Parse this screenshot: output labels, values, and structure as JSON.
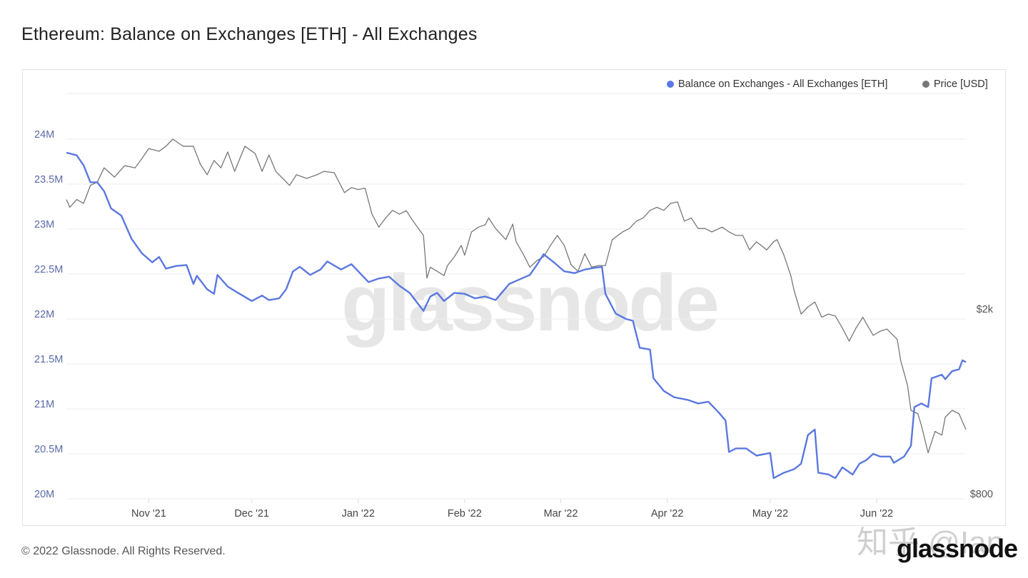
{
  "title": "Ethereum: Balance on Exchanges [ETH] - All Exchanges",
  "footer": "© 2022 Glassnode. All Rights Reserved.",
  "logo": "glassnode",
  "watermark": "glassnode",
  "overlay_watermark": "知乎 @Ian",
  "colors": {
    "balance": "#5b78e0",
    "price": "#777777",
    "grid": "#eeeeee",
    "left_axis": "#5a6aa8",
    "right_axis": "#555555"
  },
  "chart_data": {
    "type": "line",
    "title": "Ethereum: Balance on Exchanges [ETH] - All Exchanges",
    "x_unit": "days since 2021-10-08",
    "x_range": [
      0,
      262
    ],
    "x_ticks": [
      {
        "day": 24,
        "label": "Nov '21"
      },
      {
        "day": 54,
        "label": "Dec '21"
      },
      {
        "day": 85,
        "label": "Jan '22"
      },
      {
        "day": 116,
        "label": "Feb '22"
      },
      {
        "day": 144,
        "label": "Mar '22"
      },
      {
        "day": 175,
        "label": "Apr '22"
      },
      {
        "day": 205,
        "label": "May '22"
      },
      {
        "day": 236,
        "label": "Jun '22"
      }
    ],
    "y_left": {
      "label": "",
      "range_millions": [
        20,
        24.5
      ],
      "ticks": [
        {
          "value": 20,
          "label": "20M"
        },
        {
          "value": 20.5,
          "label": "20.5M"
        },
        {
          "value": 21,
          "label": "21M"
        },
        {
          "value": 21.5,
          "label": "21.5M"
        },
        {
          "value": 22,
          "label": "22M"
        },
        {
          "value": 22.5,
          "label": "22.5M"
        },
        {
          "value": 23,
          "label": "23M"
        },
        {
          "value": 23.5,
          "label": "23.5M"
        },
        {
          "value": 24,
          "label": "24M"
        }
      ]
    },
    "y_right": {
      "scale": "log",
      "range_usd": [
        800,
        5000
      ],
      "ticks": [
        {
          "value": 800,
          "label": "$800"
        },
        {
          "value": 2000,
          "label": "$2k"
        }
      ]
    },
    "grid": true,
    "legend_position": "top-right",
    "series": [
      {
        "name": "Balance on Exchanges - All Exchanges [ETH]",
        "axis": "left",
        "unit": "million ETH",
        "x": [
          0,
          3,
          5,
          7,
          9,
          11,
          13,
          16,
          19,
          22,
          25,
          27,
          29,
          32,
          35,
          37,
          38,
          41,
          43,
          44,
          47,
          50,
          54,
          57,
          59,
          62,
          64,
          66,
          68,
          71,
          74,
          76,
          80,
          83,
          85,
          88,
          91,
          94,
          97,
          100,
          104,
          106,
          108,
          110,
          113,
          116,
          119,
          122,
          125,
          129,
          132,
          135,
          137,
          139,
          142,
          145,
          148,
          151,
          154,
          156,
          157,
          160,
          163,
          165,
          167,
          170,
          171,
          174,
          177,
          181,
          184,
          187,
          190,
          192,
          193,
          195,
          198,
          201,
          205,
          206,
          209,
          212,
          214,
          216,
          218,
          219,
          222,
          224,
          226,
          229,
          231,
          233,
          235,
          237,
          240,
          241,
          244,
          246,
          247,
          249,
          251,
          252,
          255,
          256,
          258,
          260,
          261,
          262
        ],
        "y": [
          23.85,
          23.82,
          23.71,
          23.52,
          23.52,
          23.42,
          23.23,
          23.15,
          22.89,
          22.73,
          22.63,
          22.69,
          22.56,
          22.59,
          22.6,
          22.39,
          22.48,
          22.33,
          22.28,
          22.49,
          22.36,
          22.29,
          22.2,
          22.26,
          22.21,
          22.23,
          22.33,
          22.53,
          22.58,
          22.49,
          22.55,
          22.64,
          22.55,
          22.61,
          22.53,
          22.41,
          22.45,
          22.47,
          22.37,
          22.29,
          22.09,
          22.25,
          22.29,
          22.2,
          22.29,
          22.28,
          22.23,
          22.25,
          22.21,
          22.39,
          22.44,
          22.49,
          22.6,
          22.72,
          22.63,
          22.53,
          22.51,
          22.55,
          22.57,
          22.58,
          22.28,
          22.06,
          22.0,
          21.98,
          21.68,
          21.66,
          21.34,
          21.2,
          21.13,
          21.1,
          21.06,
          21.08,
          20.96,
          20.87,
          20.52,
          20.56,
          20.56,
          20.48,
          20.51,
          20.23,
          20.29,
          20.33,
          20.39,
          20.71,
          20.77,
          20.29,
          20.27,
          20.23,
          20.35,
          20.27,
          20.39,
          20.43,
          20.5,
          20.47,
          20.47,
          20.4,
          20.47,
          20.59,
          21.02,
          21.06,
          21.02,
          21.34,
          21.38,
          21.33,
          21.42,
          21.44,
          21.54,
          21.52
        ]
      },
      {
        "name": "Price [USD]",
        "axis": "right",
        "unit": "USD",
        "x": [
          0,
          1,
          3,
          5,
          7,
          9,
          11,
          14,
          17,
          20,
          22,
          24,
          27,
          29,
          31,
          34,
          37,
          39,
          41,
          43,
          45,
          47,
          49,
          52,
          55,
          57,
          59,
          61,
          63,
          65,
          67,
          70,
          73,
          75,
          78,
          81,
          83,
          85,
          87,
          89,
          91,
          93,
          95,
          97,
          99,
          101,
          104,
          105,
          106,
          108,
          110,
          111,
          113,
          115,
          116,
          118,
          120,
          122,
          123,
          125,
          128,
          130,
          131,
          133,
          135,
          137,
          139,
          141,
          143,
          145,
          147,
          149,
          151,
          153,
          155,
          157,
          159,
          162,
          164,
          166,
          168,
          170,
          172,
          174,
          176,
          178,
          180,
          182,
          184,
          186,
          188,
          191,
          193,
          195,
          197,
          199,
          201,
          204,
          206,
          207,
          209,
          211,
          212,
          214,
          216,
          218,
          220,
          222,
          224,
          226,
          228,
          230,
          232,
          233,
          235,
          237,
          239,
          242,
          243,
          245,
          246,
          248,
          249,
          251,
          253,
          255,
          256,
          258,
          260,
          262
        ],
        "y": [
          3440,
          3310,
          3440,
          3375,
          3690,
          3750,
          4025,
          3845,
          4070,
          4025,
          4215,
          4430,
          4370,
          4480,
          4640,
          4480,
          4480,
          4100,
          3890,
          4175,
          4025,
          4355,
          3955,
          4480,
          4320,
          3955,
          4290,
          3955,
          3820,
          3690,
          3890,
          3820,
          3890,
          3955,
          3930,
          3560,
          3650,
          3615,
          3640,
          3200,
          3000,
          3140,
          3260,
          3200,
          3255,
          3090,
          2880,
          2330,
          2460,
          2410,
          2360,
          2480,
          2590,
          2740,
          2610,
          2930,
          3000,
          3035,
          3140,
          2980,
          2820,
          3045,
          2790,
          2630,
          2460,
          2540,
          2590,
          2740,
          2880,
          2740,
          2490,
          2410,
          2630,
          2460,
          2480,
          2480,
          2820,
          2930,
          2980,
          3090,
          3140,
          3260,
          3310,
          3260,
          3375,
          3400,
          3090,
          3140,
          2980,
          2980,
          2930,
          3000,
          2930,
          2880,
          2880,
          2680,
          2790,
          2680,
          2790,
          2820,
          2610,
          2360,
          2185,
          1950,
          2020,
          2070,
          1920,
          1950,
          1930,
          1820,
          1705,
          1820,
          1920,
          1860,
          1755,
          1790,
          1810,
          1720,
          1550,
          1370,
          1210,
          1190,
          1125,
          980,
          1090,
          1070,
          1170,
          1210,
          1190,
          1100
        ]
      }
    ]
  }
}
